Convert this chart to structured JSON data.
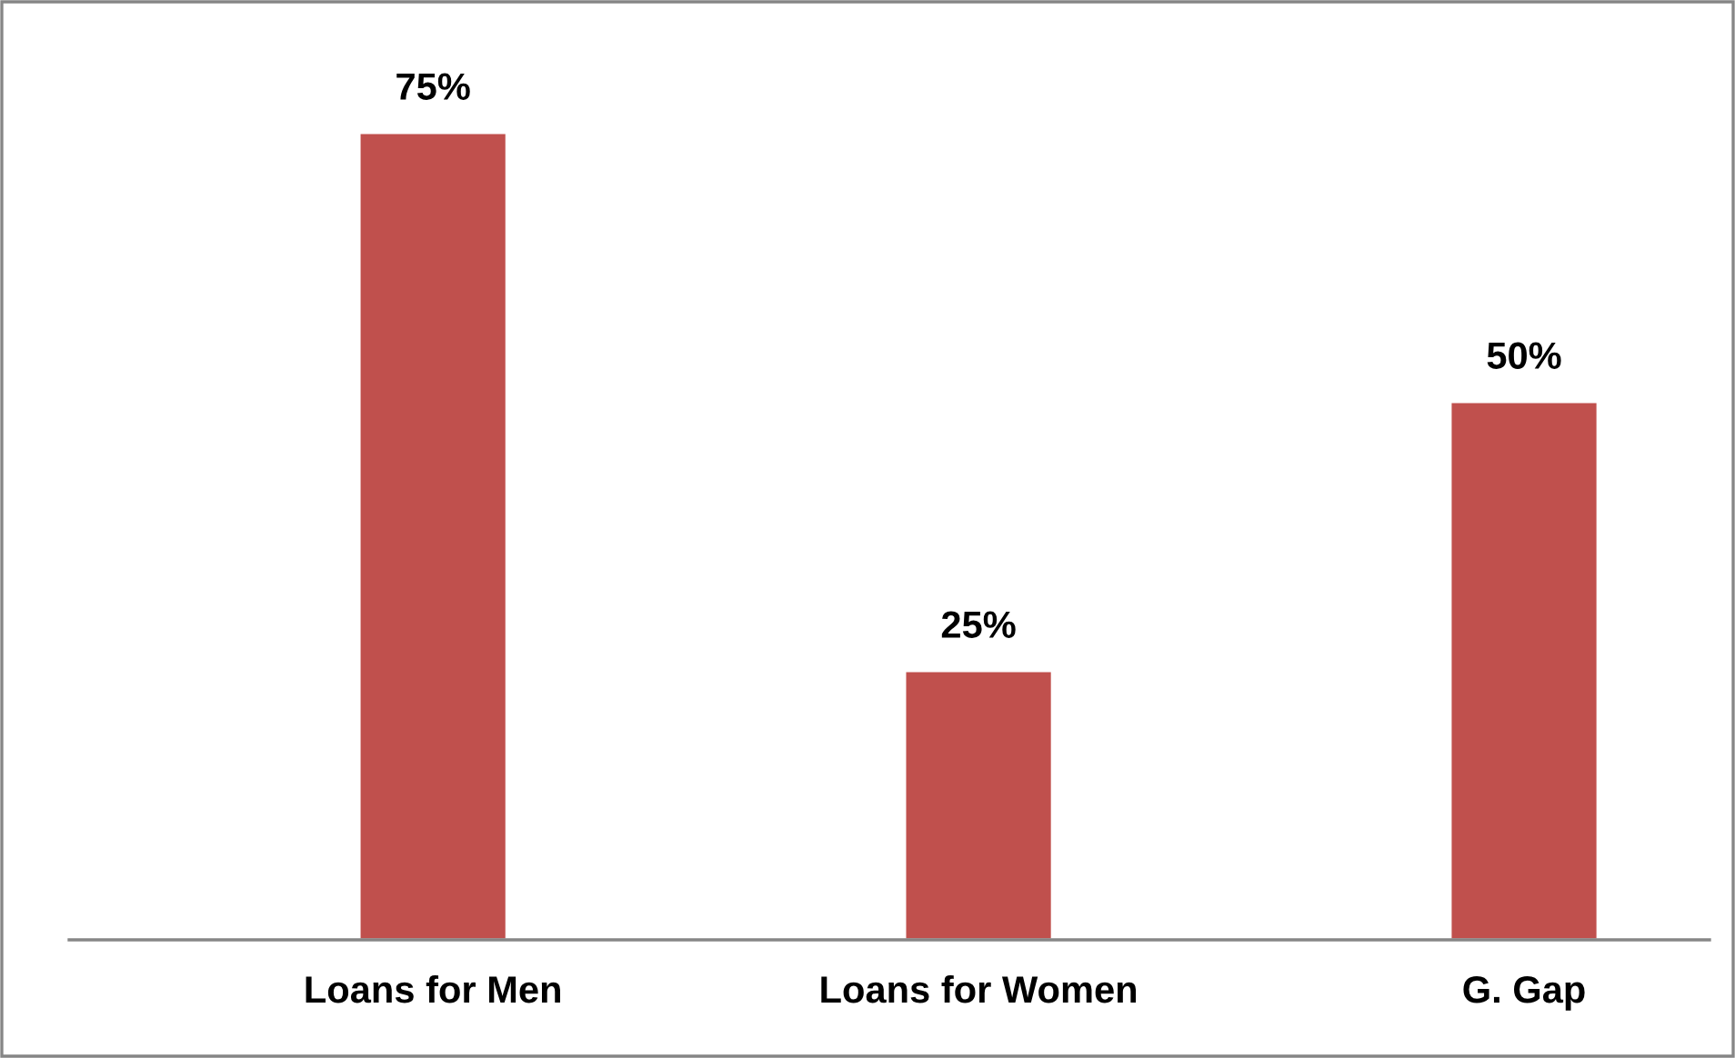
{
  "chart_data": {
    "type": "bar",
    "categories": [
      "Loans for Men",
      "Loans for Women",
      "G. Gap"
    ],
    "values": [
      75,
      25,
      50
    ],
    "value_labels": [
      "75%",
      "25%",
      "50%"
    ],
    "color": "#c0504d",
    "grid": false,
    "legend": false
  }
}
